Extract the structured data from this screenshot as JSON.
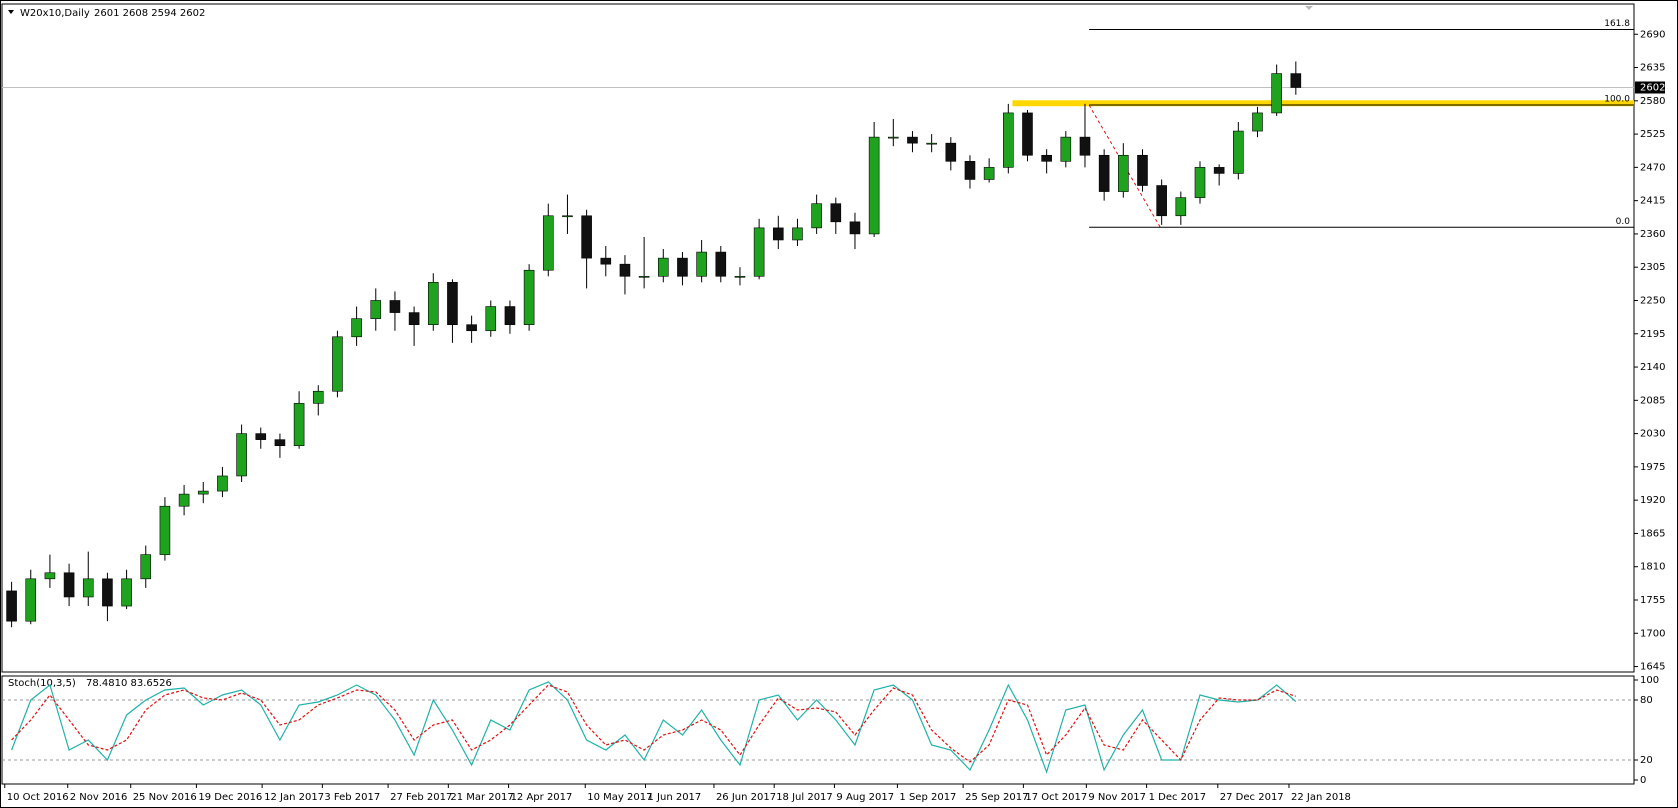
{
  "chart_data": {
    "type": "candlestick",
    "symbol": "W20x10,Daily",
    "quote": "2601 2608 2594 2602",
    "x": [
      "10 Oct 2016",
      "17 Oct 2016",
      "24 Oct 2016",
      "31 Oct 2016",
      "7 Nov 2016",
      "14 Nov 2016",
      "21 Nov 2016",
      "28 Nov 2016",
      "5 Dec 2016",
      "12 Dec 2016",
      "19 Dec 2016",
      "26 Dec 2016",
      "2 Jan 2017",
      "9 Jan 2017",
      "16 Jan 2017",
      "23 Jan 2017",
      "30 Jan 2017",
      "6 Feb 2017",
      "13 Feb 2017",
      "20 Feb 2017",
      "27 Feb 2017",
      "6 Mar 2017",
      "13 Mar 2017",
      "20 Mar 2017",
      "27 Mar 2017",
      "3 Apr 2017",
      "10 Apr 2017",
      "17 Apr 2017",
      "24 Apr 2017",
      "1 May 2017",
      "8 May 2017",
      "15 May 2017",
      "22 May 2017",
      "29 May 2017",
      "5 Jun 2017",
      "12 Jun 2017",
      "19 Jun 2017",
      "26 Jun 2017",
      "3 Jul 2017",
      "10 Jul 2017",
      "17 Jul 2017",
      "24 Jul 2017",
      "31 Jul 2017",
      "7 Aug 2017",
      "14 Aug 2017",
      "21 Aug 2017",
      "28 Aug 2017",
      "4 Sep 2017",
      "11 Sep 2017",
      "18 Sep 2017",
      "25 Sep 2017",
      "2 Oct 2017",
      "9 Oct 2017",
      "16 Oct 2017",
      "23 Oct 2017",
      "30 Oct 2017",
      "6 Nov 2017",
      "13 Nov 2017",
      "20 Nov 2017",
      "27 Nov 2017",
      "4 Dec 2017",
      "11 Dec 2017",
      "18 Dec 2017",
      "25 Dec 2017",
      "1 Jan 2018",
      "8 Jan 2018",
      "15 Jan 2018",
      "22 Jan 2018"
    ],
    "open": [
      1770,
      1720,
      1790,
      1800,
      1760,
      1790,
      1745,
      1790,
      1830,
      1910,
      1930,
      1935,
      1960,
      2030,
      2020,
      2010,
      2080,
      2100,
      2190,
      2220,
      2250,
      2230,
      2210,
      2280,
      2210,
      2200,
      2240,
      2210,
      2300,
      2390,
      2390,
      2320,
      2310,
      2290,
      2290,
      2320,
      2290,
      2330,
      2290,
      2290,
      2370,
      2350,
      2370,
      2410,
      2380,
      2360,
      2520,
      2520,
      2510,
      2510,
      2480,
      2450,
      2470,
      2560,
      2490,
      2480,
      2520,
      2490,
      2430,
      2490,
      2440,
      2390,
      2420,
      2470,
      2460,
      2530,
      2560,
      2625
    ],
    "high": [
      1785,
      1805,
      1830,
      1815,
      1835,
      1800,
      1805,
      1845,
      1925,
      1945,
      1950,
      1975,
      2045,
      2040,
      2030,
      2100,
      2110,
      2200,
      2240,
      2270,
      2265,
      2240,
      2295,
      2285,
      2225,
      2250,
      2250,
      2310,
      2410,
      2425,
      2400,
      2340,
      2325,
      2355,
      2335,
      2330,
      2350,
      2340,
      2305,
      2385,
      2390,
      2385,
      2425,
      2420,
      2395,
      2545,
      2550,
      2530,
      2525,
      2520,
      2490,
      2485,
      2575,
      2565,
      2500,
      2530,
      2575,
      2500,
      2510,
      2500,
      2450,
      2430,
      2480,
      2475,
      2545,
      2570,
      2640,
      2645
    ],
    "low": [
      1710,
      1715,
      1775,
      1745,
      1745,
      1720,
      1740,
      1775,
      1820,
      1895,
      1915,
      1925,
      1950,
      2005,
      1990,
      2005,
      2060,
      2090,
      2175,
      2200,
      2200,
      2175,
      2200,
      2180,
      2180,
      2190,
      2195,
      2200,
      2290,
      2360,
      2270,
      2290,
      2260,
      2270,
      2280,
      2275,
      2280,
      2280,
      2275,
      2285,
      2335,
      2340,
      2360,
      2360,
      2335,
      2355,
      2505,
      2495,
      2495,
      2465,
      2435,
      2445,
      2460,
      2480,
      2460,
      2470,
      2470,
      2415,
      2420,
      2430,
      2375,
      2375,
      2410,
      2440,
      2450,
      2520,
      2555,
      2590
    ],
    "close": [
      1720,
      1790,
      1800,
      1760,
      1790,
      1745,
      1790,
      1830,
      1910,
      1930,
      1935,
      1960,
      2030,
      2020,
      2010,
      2080,
      2100,
      2190,
      2220,
      2250,
      2230,
      2210,
      2280,
      2210,
      2200,
      2240,
      2210,
      2300,
      2390,
      2390,
      2320,
      2310,
      2290,
      2290,
      2320,
      2290,
      2330,
      2290,
      2290,
      2370,
      2350,
      2370,
      2410,
      2380,
      2360,
      2520,
      2520,
      2510,
      2510,
      2480,
      2450,
      2470,
      2560,
      2490,
      2480,
      2520,
      2490,
      2430,
      2490,
      2440,
      2390,
      2420,
      2470,
      2460,
      2530,
      2560,
      2625,
      2602
    ],
    "bull_color": "#1fa31f",
    "bear_color": "#111111",
    "xlim": [
      "9 Oct 2016",
      "28 May 2018"
    ],
    "xticks": [
      "10 Oct 2016",
      "2 Nov 2016",
      "25 Nov 2016",
      "19 Dec 2016",
      "12 Jan 2017",
      "3 Feb 2017",
      "27 Feb 2017",
      "21 Mar 2017",
      "12 Apr 2017",
      "10 May 2017",
      "1 Jun 2017",
      "26 Jun 2017",
      "18 Jul 2017",
      "9 Aug 2017",
      "1 Sep 2017",
      "25 Sep 2017",
      "17 Oct 2017",
      "9 Nov 2017",
      "1 Dec 2017",
      "27 Dec 2017",
      "22 Jan 2018"
    ],
    "ylim": [
      1636,
      2740
    ],
    "yticks": [
      1645,
      1700,
      1755,
      1810,
      1865,
      1920,
      1975,
      2030,
      2085,
      2140,
      2195,
      2250,
      2305,
      2360,
      2415,
      2470,
      2525,
      2580,
      2635,
      2690
    ],
    "last_price": 2602,
    "highlight": {
      "value": 2576,
      "start": "13 Oct 2017",
      "color": "#ffd700"
    },
    "fibonacci": {
      "x": [
        "10 Nov 2017",
        "6 Dec 2017"
      ],
      "prices": [
        2573,
        2371
      ],
      "levels": [
        {
          "value": 161.8,
          "label": "161.8"
        },
        {
          "value": 100,
          "label": "100.0"
        },
        {
          "value": 0,
          "label": "0.0"
        }
      ]
    },
    "indicator": {
      "title": "Stoch(10,3,5)",
      "readout": "78.4810 83.6526",
      "ylim": [
        -4,
        104
      ],
      "yticks": [
        100,
        80,
        20,
        0
      ],
      "levels": [
        80,
        20
      ],
      "series": [
        {
          "color": "#20b2aa",
          "values": [
            30,
            80,
            95,
            30,
            40,
            20,
            65,
            80,
            90,
            92,
            75,
            85,
            90,
            75,
            40,
            75,
            78,
            85,
            95,
            85,
            60,
            25,
            80,
            50,
            15,
            60,
            50,
            90,
            98,
            80,
            40,
            30,
            45,
            20,
            60,
            45,
            70,
            40,
            15,
            80,
            85,
            60,
            80,
            60,
            35,
            90,
            95,
            80,
            35,
            30,
            10,
            50,
            95,
            60,
            8,
            70,
            75,
            10,
            45,
            70,
            20,
            20,
            85,
            80,
            78,
            80,
            95,
            78.481
          ]
        },
        {
          "color": "#e01010",
          "dashed": true,
          "values": [
            40,
            60,
            85,
            60,
            35,
            30,
            40,
            70,
            85,
            90,
            82,
            80,
            87,
            80,
            55,
            60,
            75,
            82,
            90,
            88,
            70,
            40,
            55,
            60,
            30,
            40,
            55,
            75,
            95,
            88,
            55,
            35,
            40,
            30,
            45,
            50,
            60,
            50,
            25,
            55,
            82,
            70,
            72,
            68,
            45,
            70,
            92,
            85,
            50,
            32,
            18,
            35,
            80,
            75,
            25,
            45,
            72,
            35,
            30,
            60,
            40,
            20,
            60,
            82,
            80,
            80,
            90,
            83.6526
          ]
        }
      ]
    }
  }
}
